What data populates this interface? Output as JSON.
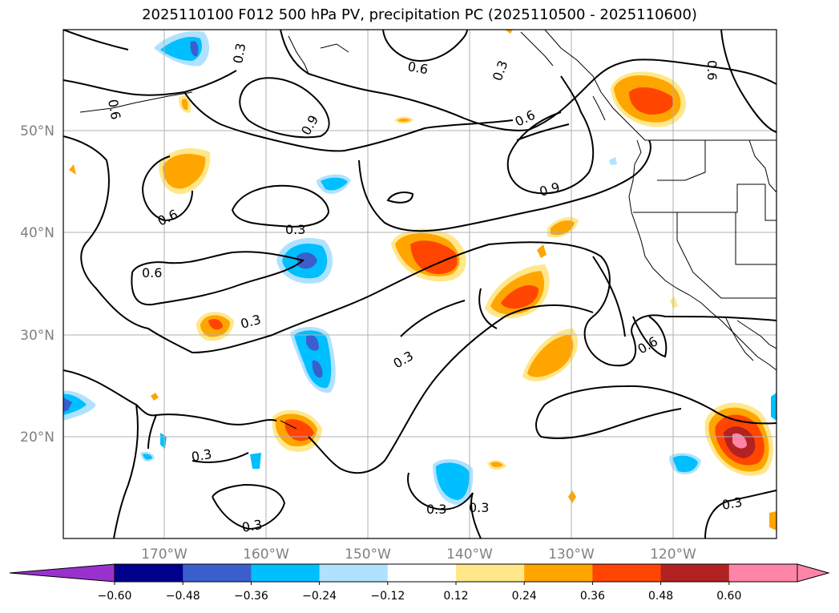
{
  "title": "2025110100 F012 500 hPa PV, precipitation PC (2025110500 - 2025110600)",
  "lat_labels": [
    "50°N",
    "40°N",
    "30°N",
    "20°N"
  ],
  "lon_labels": [
    "170°W",
    "160°W",
    "150°W",
    "140°W",
    "130°W",
    "120°W"
  ],
  "contour_labels": [
    "0.6",
    "0.3",
    "0.6",
    "0.9",
    "0.3",
    "0.6",
    "0.9",
    "0.6",
    "0.3",
    "0.3",
    "0.6",
    "0.6",
    "0.3",
    "0.3",
    "0.3",
    "0.3",
    "0.3",
    "0.3",
    "0.6"
  ],
  "colorbar": {
    "ticks": [
      "−0.60",
      "−0.48",
      "−0.36",
      "−0.24",
      "−0.12",
      "0.12",
      "0.24",
      "0.36",
      "0.48",
      "0.60"
    ],
    "colors": [
      "#9932cc",
      "#00008b",
      "#3a5fcd",
      "#00bfff",
      "#b0e2ff",
      "#ffffff",
      "#ffe78a",
      "#ffa500",
      "#ff4500",
      "#b22222",
      "#ff85a8",
      "#ff85a8"
    ]
  }
}
